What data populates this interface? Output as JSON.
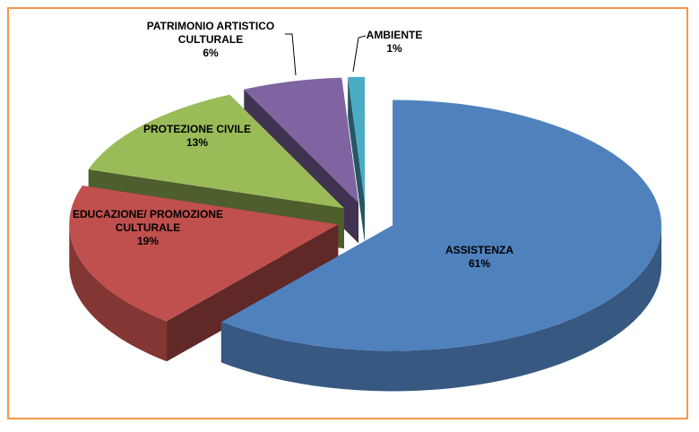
{
  "chart_data": {
    "type": "pie3d",
    "categories": [
      "ASSISTENZA",
      "EDUCAZIONE/ PROMOZIONE CULTURALE",
      "PROTEZIONE CIVILE",
      "PATRIMONIO ARTISTICO CULTURALE",
      "AMBIENTE"
    ],
    "values": [
      61,
      19,
      13,
      6,
      1
    ],
    "value_labels": [
      "61%",
      "19%",
      "13%",
      "6%",
      "1%"
    ],
    "colors": [
      "#4f81bd",
      "#c0504d",
      "#9bbb59",
      "#8064a2",
      "#4bacc6"
    ]
  }
}
